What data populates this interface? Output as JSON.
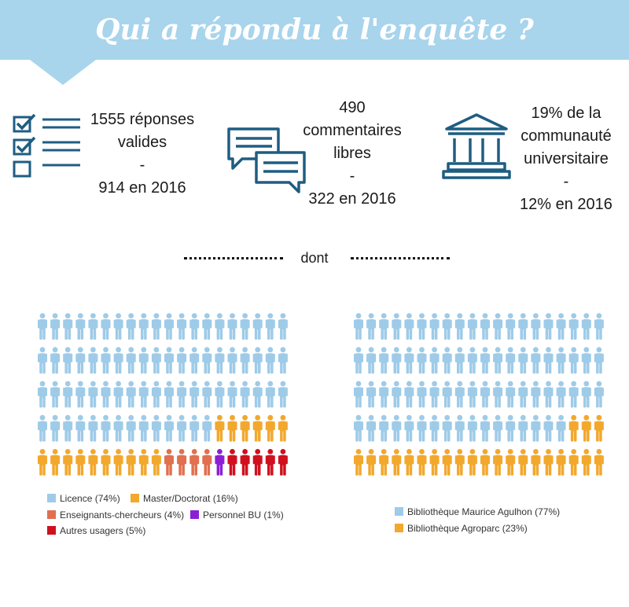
{
  "header": {
    "title": "Qui a répondu à l'enquête ?"
  },
  "stats": [
    {
      "icon": "checklist-icon",
      "lines": [
        "1555 réponses",
        "valides",
        "-",
        "914 en 2016"
      ]
    },
    {
      "icon": "speech-bubbles-icon",
      "lines": [
        "490",
        "commentaires",
        "libres",
        "-",
        "322 en 2016"
      ]
    },
    {
      "icon": "university-building-icon",
      "lines": [
        "19% de la",
        "communauté",
        "universitaire",
        "-",
        "12% en 2016"
      ]
    }
  ],
  "divider": {
    "label": "dont"
  },
  "colors": {
    "licence": "#9ecbe8",
    "master": "#f2a82d",
    "enseignants": "#e0704f",
    "personnel": "#8c1fd6",
    "autres": "#d0101e",
    "icon_stroke": "#1f5d82",
    "banner": "#a8d4ec"
  },
  "chart_data": [
    {
      "type": "pictogram",
      "icon": "person-icon",
      "grid": {
        "columns": 20,
        "rows": 5
      },
      "categories": [
        "Licence (74%)",
        "Master/Doctorat (16%)",
        "Enseignants-chercheurs (4%)",
        "Personnel BU (1%)",
        "Autres usagers (5%)"
      ],
      "values": [
        74,
        16,
        4,
        1,
        5
      ],
      "colors": [
        "#9ecbe8",
        "#f2a82d",
        "#e0704f",
        "#8c1fd6",
        "#d0101e"
      ]
    },
    {
      "type": "pictogram",
      "icon": "person-icon",
      "grid": {
        "columns": 20,
        "rows": 5
      },
      "categories": [
        "Bibliothèque Maurice Agulhon (77%)",
        "Bibliothèque Agroparc (23%)"
      ],
      "values": [
        77,
        23
      ],
      "colors": [
        "#9ecbe8",
        "#f2a82d"
      ]
    }
  ]
}
